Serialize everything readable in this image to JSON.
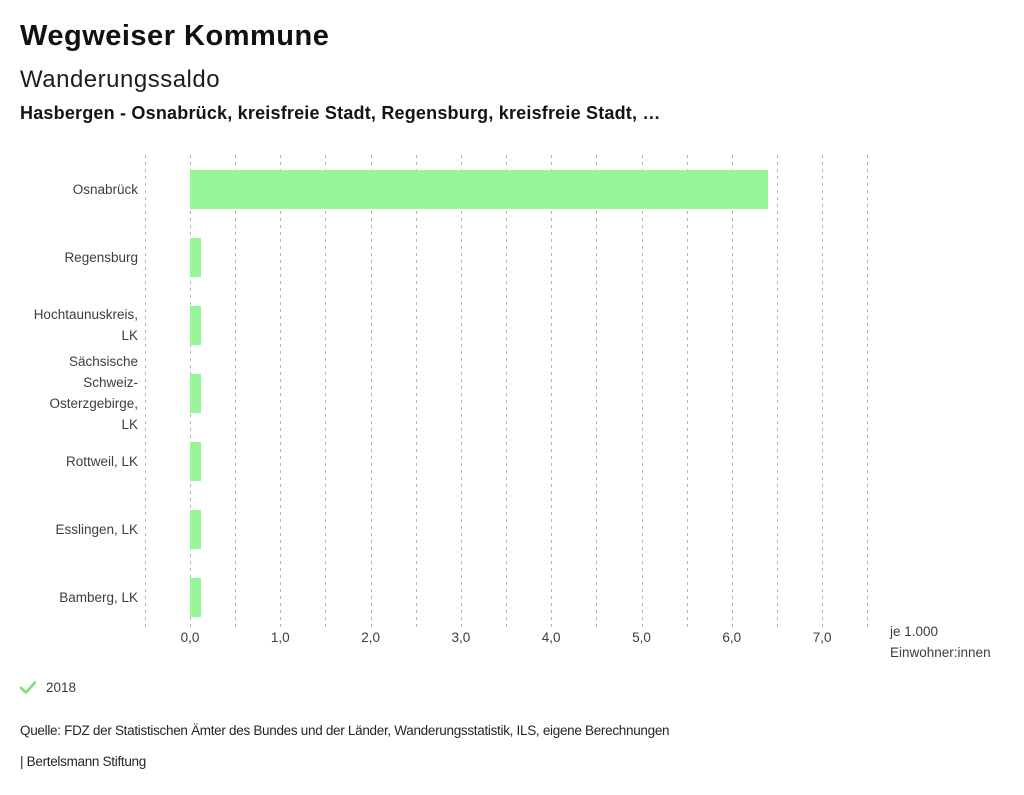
{
  "header": {
    "app_title": "Wegweiser Kommune",
    "chart_title": "Wanderungssaldo",
    "selection_line": "Hasbergen - Osnabrück, kreisfreie Stadt, Regensburg, kreisfreie Stadt, …"
  },
  "chart_data": {
    "type": "bar",
    "orientation": "horizontal",
    "title": "Wanderungssaldo",
    "unit": "je 1.000 Einwohner:innen",
    "unit_label_lines": [
      "je 1.000",
      "Einwohner:innen"
    ],
    "categories": [
      "Osnabrück",
      "Regensburg",
      "Hochtaunuskreis, LK",
      "Sächsische Schweiz-Osterzgebirge, LK",
      "Rottweil, LK",
      "Esslingen, LK",
      "Bamberg, LK"
    ],
    "category_label_lines": [
      [
        "Osnabrück"
      ],
      [
        "Regensburg"
      ],
      [
        "Hochtaunuskreis,",
        "LK"
      ],
      [
        "Sächsische",
        "Schweiz-",
        "Osterzgebirge,",
        "LK"
      ],
      [
        "Rottweil, LK"
      ],
      [
        "Esslingen, LK"
      ],
      [
        "Bamberg, LK"
      ]
    ],
    "series_name": "2018",
    "values": [
      6.4,
      0.12,
      0.12,
      0.12,
      0.12,
      0.12,
      0.12
    ],
    "xlim": [
      -0.5,
      7.5
    ],
    "gridline_step": 0.5,
    "x_tick_values": [
      0,
      1,
      2,
      3,
      4,
      5,
      6,
      7
    ],
    "x_tick_labels": [
      "0,0",
      "1,0",
      "2,0",
      "3,0",
      "4,0",
      "5,0",
      "6,0",
      "7,0"
    ],
    "grid": "dotted-vertical",
    "legend_position": "bottom-left",
    "bar_color": "#99F599",
    "gridline_color": "#b3b3b3"
  },
  "legend": {
    "check_icon": "check-icon",
    "check_color": "#7EDC7E",
    "year_label": "2018"
  },
  "footer": {
    "source_line": "Quelle: FDZ der Statistischen Ämter des Bundes und der Länder, Wanderungsstatistik, ILS, eigene Berechnungen",
    "branding_line": "| Bertelsmann Stiftung"
  }
}
